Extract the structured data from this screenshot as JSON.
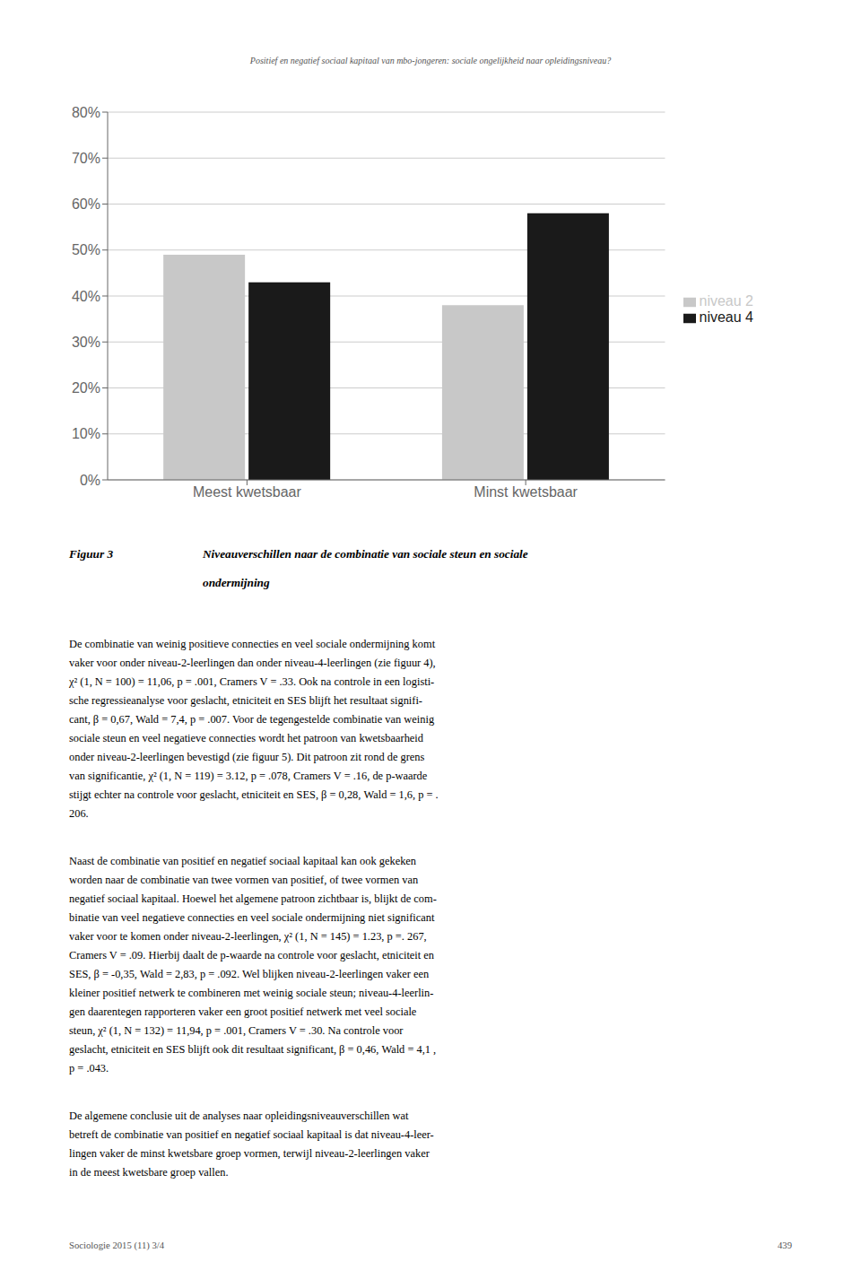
{
  "chart_data": {
    "type": "bar",
    "subtitle": "Positief en negatief sociaal kapitaal van mbo-jongeren: sociale ongelijkheid naar opleidingsniveau?",
    "categories": [
      "Meest kwetsbaar",
      "Minst kwetsbaar"
    ],
    "series": [
      {
        "name": "niveau 2",
        "color": "#c8c8c8",
        "values": [
          0.49,
          0.38
        ]
      },
      {
        "name": "niveau 4",
        "color": "#1a1a1a",
        "values": [
          0.43,
          0.58
        ]
      }
    ],
    "ylim": [
      0,
      0.8
    ],
    "yticks": [
      {
        "value": 0,
        "label": "0%"
      },
      {
        "value": 0.1,
        "label": "10%"
      },
      {
        "value": 0.2,
        "label": "20%"
      },
      {
        "value": 0.3,
        "label": "30%"
      },
      {
        "value": 0.4,
        "label": "40%"
      },
      {
        "value": 0.5,
        "label": "50%"
      },
      {
        "value": 0.6,
        "label": "60%"
      },
      {
        "value": 0.7,
        "label": "70%"
      },
      {
        "value": 0.8,
        "label": "80%"
      }
    ],
    "grid": true,
    "legend": "right",
    "annotations": [
      [
        "Figuur 3"
      ],
      [
        "Niveauverschillen naar de combinatie van sociale steun en sociale",
        "ondermijning"
      ],
      [
        "De combinatie van weinig positieve connecties en veel sociale ondermijning komt",
        "vaker voor onder niveau-2-leerlingen dan onder niveau-4-leerlingen (zie figuur 4),",
        "χ² (1, N = 100) = 11,06, p = .001, Cramers V = .33. Ook na controle in een logisti-",
        "sche regressieanalyse voor geslacht, etniciteit en SES blijft het resultaat signifi-",
        "cant, β = 0,67, Wald = 7,4, p = .007. Voor de tegengestelde combinatie van weinig",
        "sociale steun en veel negatieve connecties wordt het patroon van kwetsbaarheid",
        "onder niveau-2-leerlingen bevestigd (zie figuur 5). Dit patroon zit rond de grens",
        "van significantie, χ² (1, N = 119) = 3.12, p = .078, Cramers V = .16, de p-waarde",
        "stijgt echter na controle voor geslacht, etniciteit en SES, β = 0,28, Wald = 1,6, p = .",
        "206."
      ],
      [
        "Naast de combinatie van positief en negatief sociaal kapitaal kan ook gekeken",
        "worden naar de combinatie van twee vormen van positief, of twee vormen van",
        "negatief sociaal kapitaal. Hoewel het algemene patroon zichtbaar is, blijkt de com-",
        "binatie van veel negatieve connecties en veel sociale ondermijning niet significant",
        "vaker voor te komen onder niveau-2-leerlingen, χ² (1, N = 145) = 1.23, p =. 267,",
        "Cramers V = .09. Hierbij daalt de p-waarde na controle voor geslacht, etniciteit en",
        "SES, β = -0,35, Wald = 2,83, p = .092. Wel blijken niveau-2-leerlingen vaker een",
        "kleiner positief netwerk te combineren met weinig sociale steun; niveau-4-leerlin-",
        "gen daarentegen rapporteren vaker een groot positief netwerk met veel sociale",
        "steun, χ² (1, N = 132) = 11,94, p = .001, Cramers V = .30. Na controle voor",
        "geslacht, etniciteit en SES blijft ook dit resultaat significant, β = 0,46, Wald = 4,1 ,",
        "p = .043."
      ],
      [
        "De algemene conclusie uit de analyses naar opleidingsniveauverschillen wat",
        "betreft de combinatie van positief en negatief sociaal kapitaal is dat niveau-4-leer-",
        "lingen vaker de minst kwetsbare groep vormen, terwijl niveau-2-leerlingen vaker",
        "in de meest kwetsbare groep vallen."
      ],
      [
        "Sociologie 2015 (11) 3/4"
      ],
      [
        "439"
      ]
    ]
  }
}
